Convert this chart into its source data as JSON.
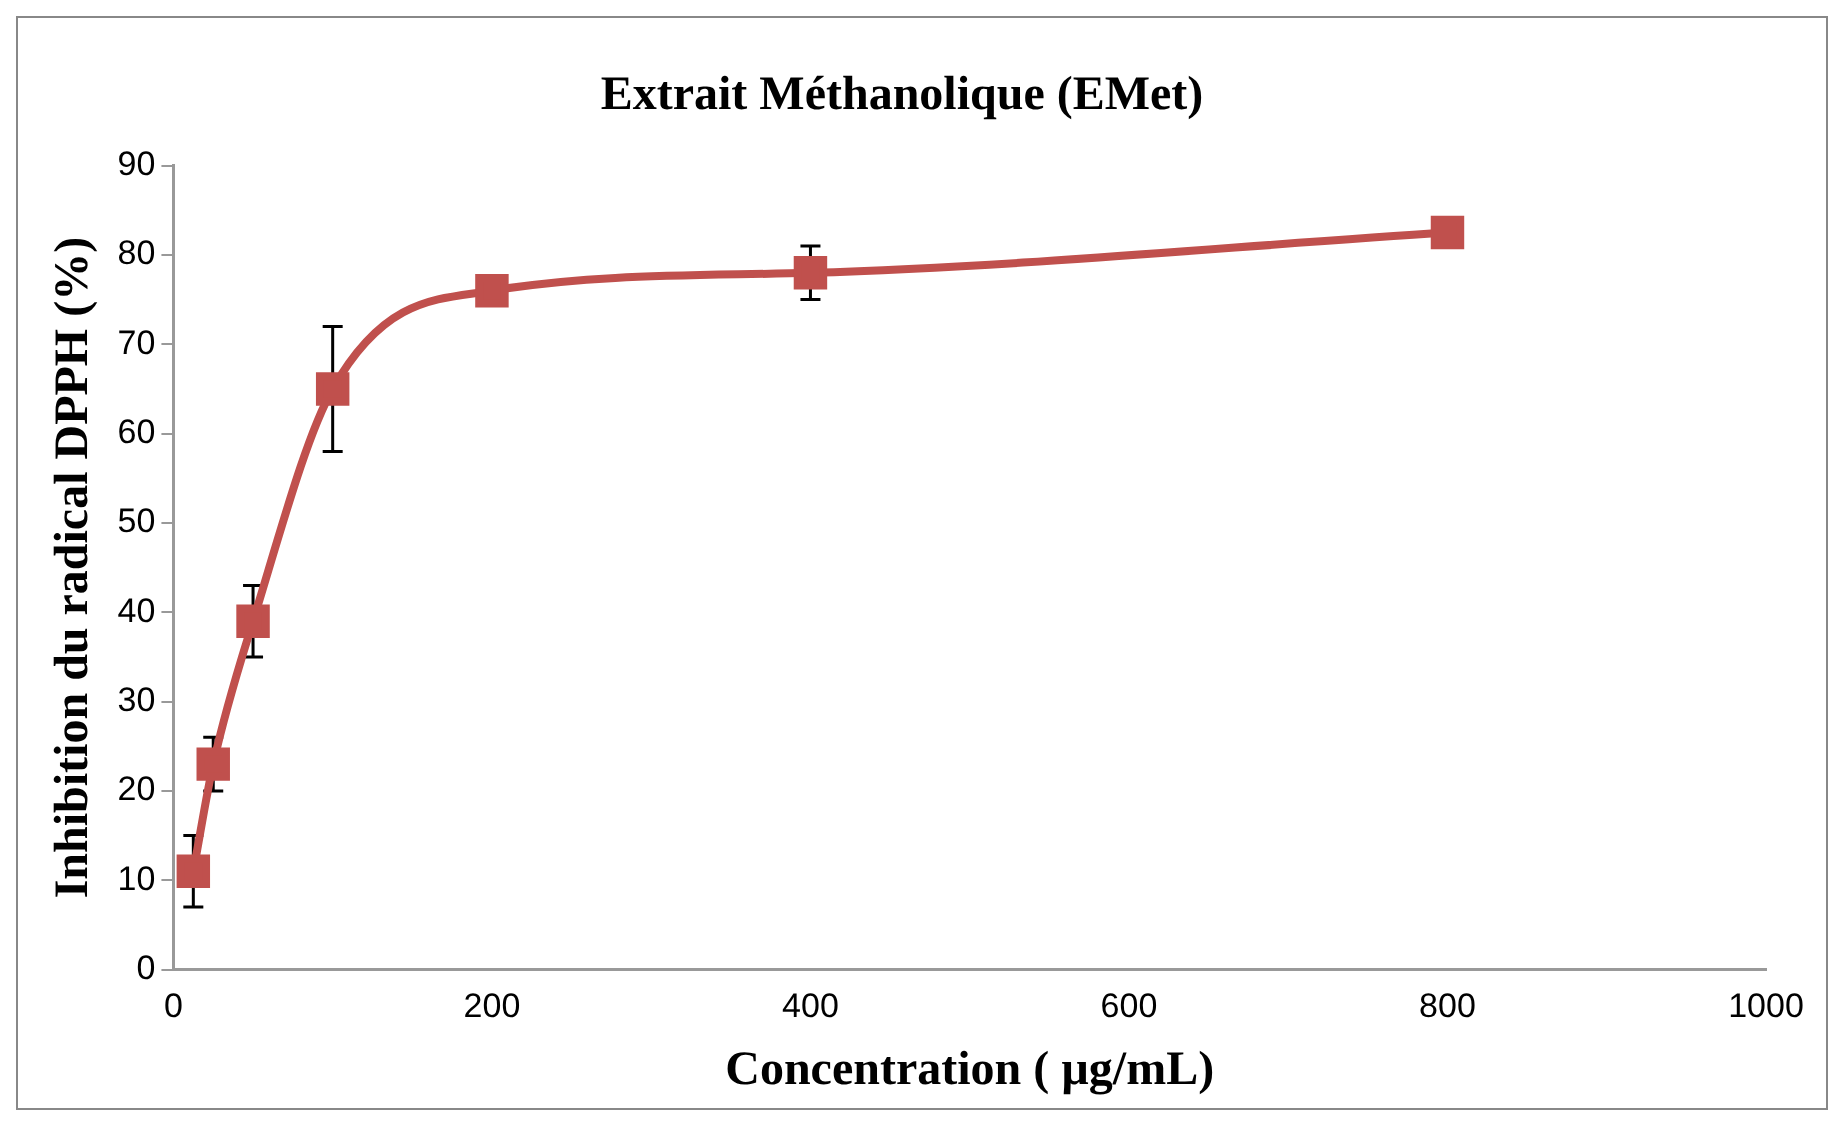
{
  "chart_data": {
    "type": "line",
    "title": "Extrait Méthanolique (EMet)",
    "xlabel": "Concentration ( µg/mL)",
    "ylabel": "Inhibition du radical DPPH (%)",
    "x": [
      12.5,
      25,
      50,
      100,
      200,
      400,
      800
    ],
    "series": [
      {
        "color": "#c0504d",
        "values": [
          11,
          23,
          39,
          65,
          76,
          78,
          82.5
        ],
        "errors": [
          4,
          3,
          4,
          7,
          null,
          3,
          null
        ]
      }
    ],
    "xlim": [
      0,
      1000
    ],
    "xticks": [
      0,
      200,
      400,
      600,
      800,
      1000
    ],
    "ylim": [
      0,
      90
    ],
    "yticks": [
      0,
      10,
      20,
      30,
      40,
      50,
      60,
      70,
      80,
      90
    ],
    "grid": false,
    "legend": false,
    "marker": "square",
    "line_style": "solid"
  }
}
